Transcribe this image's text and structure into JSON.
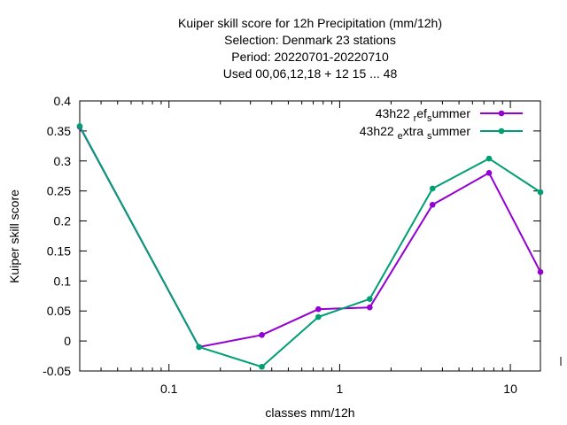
{
  "chart_data": {
    "type": "line",
    "title_lines": [
      "Kuiper skill score  for 12h Precipitation (mm/12h)",
      "Selection: Denmark     23 stations",
      "Period: 20220701-20220710",
      "Used  00,06,12,18  + 12 15 ... 48"
    ],
    "xlabel": "classes mm/12h",
    "ylabel": "Kuiper skill score",
    "x_scale": "log",
    "xlim": [
      0.03,
      15
    ],
    "ylim": [
      -0.05,
      0.4
    ],
    "x_ticks": [
      {
        "value": 0.1,
        "label": "0.1"
      },
      {
        "value": 1,
        "label": "1"
      },
      {
        "value": 10,
        "label": "10"
      }
    ],
    "y_ticks": [
      {
        "value": -0.05,
        "label": "-0.05"
      },
      {
        "value": 0,
        "label": "0"
      },
      {
        "value": 0.05,
        "label": "0.05"
      },
      {
        "value": 0.1,
        "label": "0.1"
      },
      {
        "value": 0.15,
        "label": "0.15"
      },
      {
        "value": 0.2,
        "label": "0.2"
      },
      {
        "value": 0.25,
        "label": "0.25"
      },
      {
        "value": 0.3,
        "label": "0.3"
      },
      {
        "value": 0.35,
        "label": "0.35"
      },
      {
        "value": 0.4,
        "label": "0.4"
      }
    ],
    "grid": false,
    "legend_position": "top-right",
    "series": [
      {
        "legend_parts": [
          [
            "43h22 ",
            "n"
          ],
          [
            "r",
            "s"
          ],
          [
            "ef",
            "n"
          ],
          [
            "s",
            "s"
          ],
          [
            "ummer",
            "n"
          ]
        ],
        "color": "#9400d3",
        "x": [
          0.03,
          0.15,
          0.35,
          0.75,
          1.5,
          3.5,
          7.5,
          15
        ],
        "y": [
          0.357,
          -0.01,
          0.01,
          0.053,
          0.056,
          0.227,
          0.28,
          0.115
        ]
      },
      {
        "legend_parts": [
          [
            "43h22 ",
            "n"
          ],
          [
            "e",
            "s"
          ],
          [
            "xtra ",
            "n"
          ],
          [
            "s",
            "s"
          ],
          [
            "ummer",
            "n"
          ]
        ],
        "color": "#009e73",
        "x": [
          0.03,
          0.15,
          0.35,
          0.75,
          1.5,
          3.5,
          7.5,
          15
        ],
        "y": [
          0.358,
          -0.01,
          -0.043,
          0.04,
          0.07,
          0.254,
          0.304,
          0.248
        ]
      }
    ]
  }
}
